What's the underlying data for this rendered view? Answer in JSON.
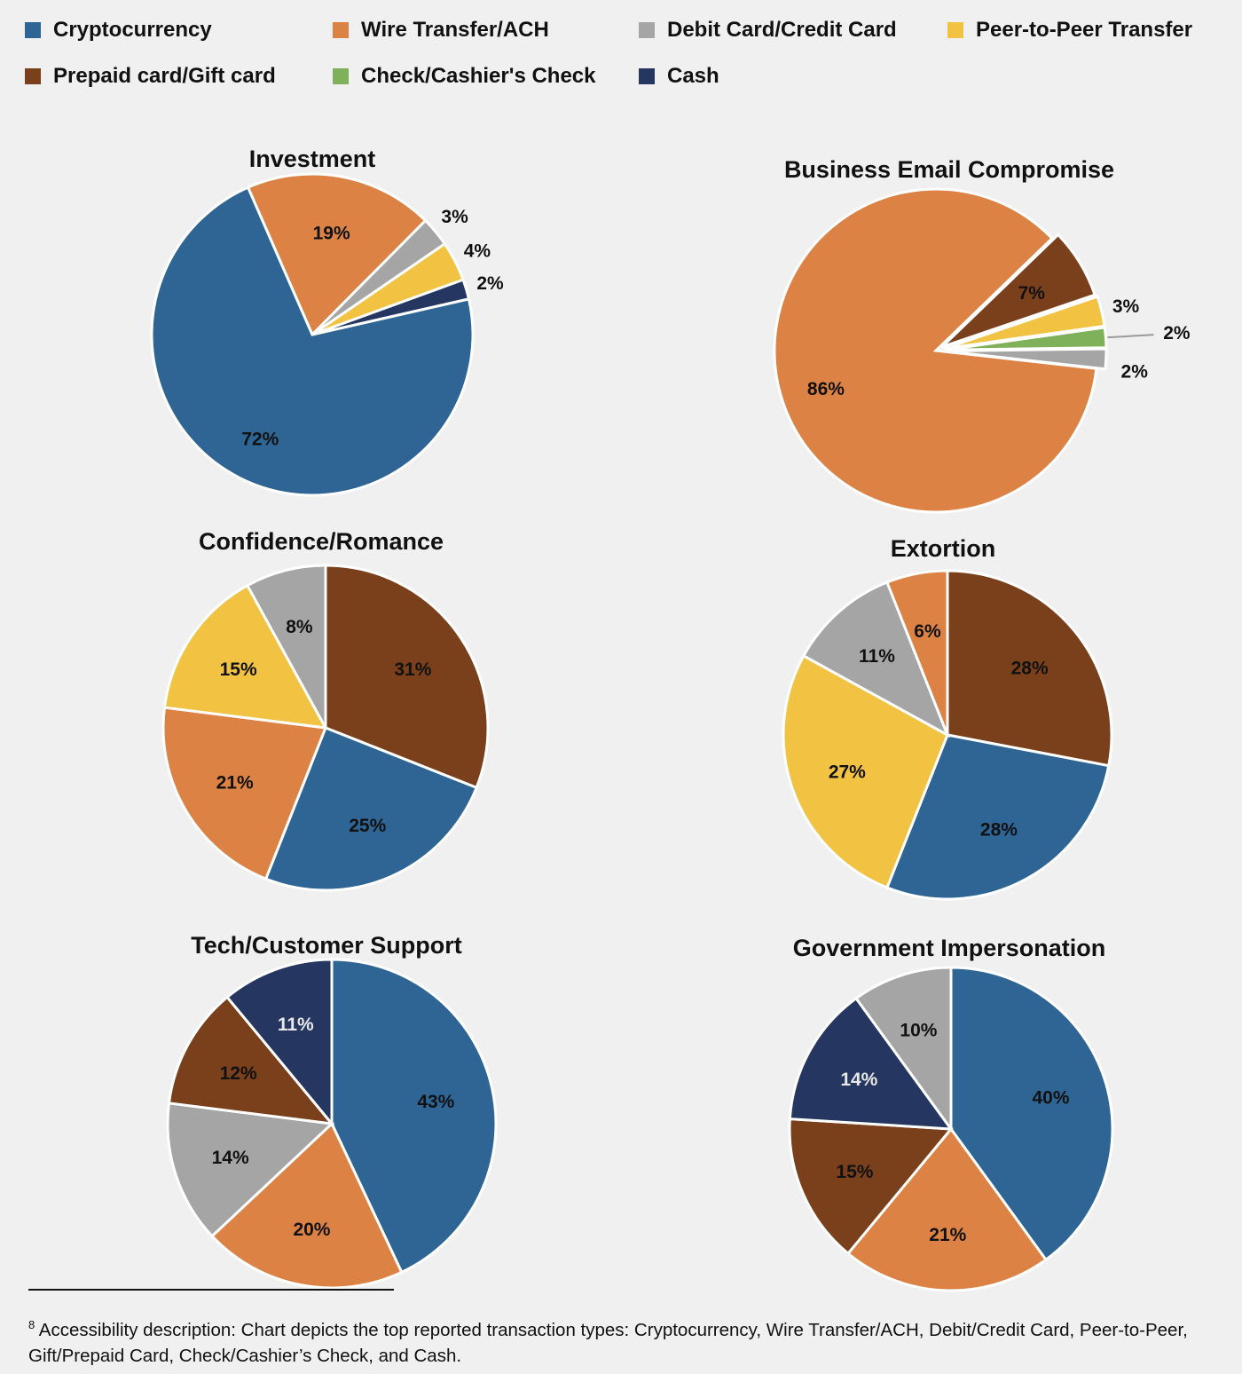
{
  "chart_data": [
    {
      "type": "pie",
      "title": "Investment",
      "categories": [
        "Wire Transfer/ACH",
        "Debit Card/Credit Card",
        "Peer-to-Peer Transfer",
        "Cash",
        "Cryptocurrency"
      ],
      "values": [
        19,
        3,
        4,
        2,
        72
      ],
      "labels": [
        "19%",
        "3%",
        "4%",
        "2%",
        "72%"
      ]
    },
    {
      "type": "pie",
      "title": "Business Email Compromise",
      "categories": [
        "Wire Transfer/ACH",
        "Prepaid card/Gift card",
        "Peer-to-Peer Transfer",
        "Check/Cashier's Check",
        "Debit Card/Credit Card"
      ],
      "values": [
        86,
        7,
        3,
        2,
        2
      ],
      "labels": [
        "86%",
        "7%",
        "3%",
        "2%",
        "2%"
      ]
    },
    {
      "type": "pie",
      "title": "Confidence/Romance",
      "categories": [
        "Prepaid card/Gift card",
        "Cryptocurrency",
        "Wire Transfer/ACH",
        "Peer-to-Peer Transfer",
        "Debit Card/Credit Card"
      ],
      "values": [
        31,
        25,
        21,
        15,
        8
      ],
      "labels": [
        "31%",
        "25%",
        "21%",
        "15%",
        "8%"
      ]
    },
    {
      "type": "pie",
      "title": "Extortion",
      "categories": [
        "Prepaid card/Gift card",
        "Cryptocurrency",
        "Peer-to-Peer Transfer",
        "Debit Card/Credit Card",
        "Wire Transfer/ACH"
      ],
      "values": [
        28,
        28,
        27,
        11,
        6
      ],
      "labels": [
        "28%",
        "28%",
        "27%",
        "11%",
        "6%"
      ]
    },
    {
      "type": "pie",
      "title": "Tech/Customer Support",
      "categories": [
        "Cryptocurrency",
        "Wire Transfer/ACH",
        "Debit Card/Credit Card",
        "Prepaid card/Gift card",
        "Cash"
      ],
      "values": [
        43,
        20,
        14,
        12,
        11
      ],
      "labels": [
        "43%",
        "20%",
        "14%",
        "12%",
        "11%"
      ]
    },
    {
      "type": "pie",
      "title": "Government Impersonation",
      "categories": [
        "Cryptocurrency",
        "Wire Transfer/ACH",
        "Prepaid card/Gift card",
        "Cash",
        "Debit Card/Credit Card"
      ],
      "values": [
        40,
        21,
        15,
        14,
        10
      ],
      "labels": [
        "40%",
        "21%",
        "15%",
        "14%",
        "10%"
      ]
    }
  ],
  "legend": [
    {
      "label": "Cryptocurrency",
      "color": "#2e6594"
    },
    {
      "label": "Wire Transfer/ACH",
      "color": "#dc8244"
    },
    {
      "label": "Debit Card/Credit Card",
      "color": "#a5a5a5"
    },
    {
      "label": "Peer-to-Peer Transfer",
      "color": "#f2c243"
    },
    {
      "label": "Prepaid card/Gift card",
      "color": "#7a3f1b"
    },
    {
      "label": "Check/Cashier's Check",
      "color": "#7fb05a"
    },
    {
      "label": "Cash",
      "color": "#253660"
    }
  ],
  "legend_placement": "top",
  "footnote": {
    "marker": "8",
    "text": " Accessibility description: Chart depicts the top reported transaction types: Cryptocurrency, Wire Transfer/ACH, Debit/Credit Card, Peer-to-Peer, Gift/Prepaid Card, Check/Cashier’s Check, and Cash."
  }
}
